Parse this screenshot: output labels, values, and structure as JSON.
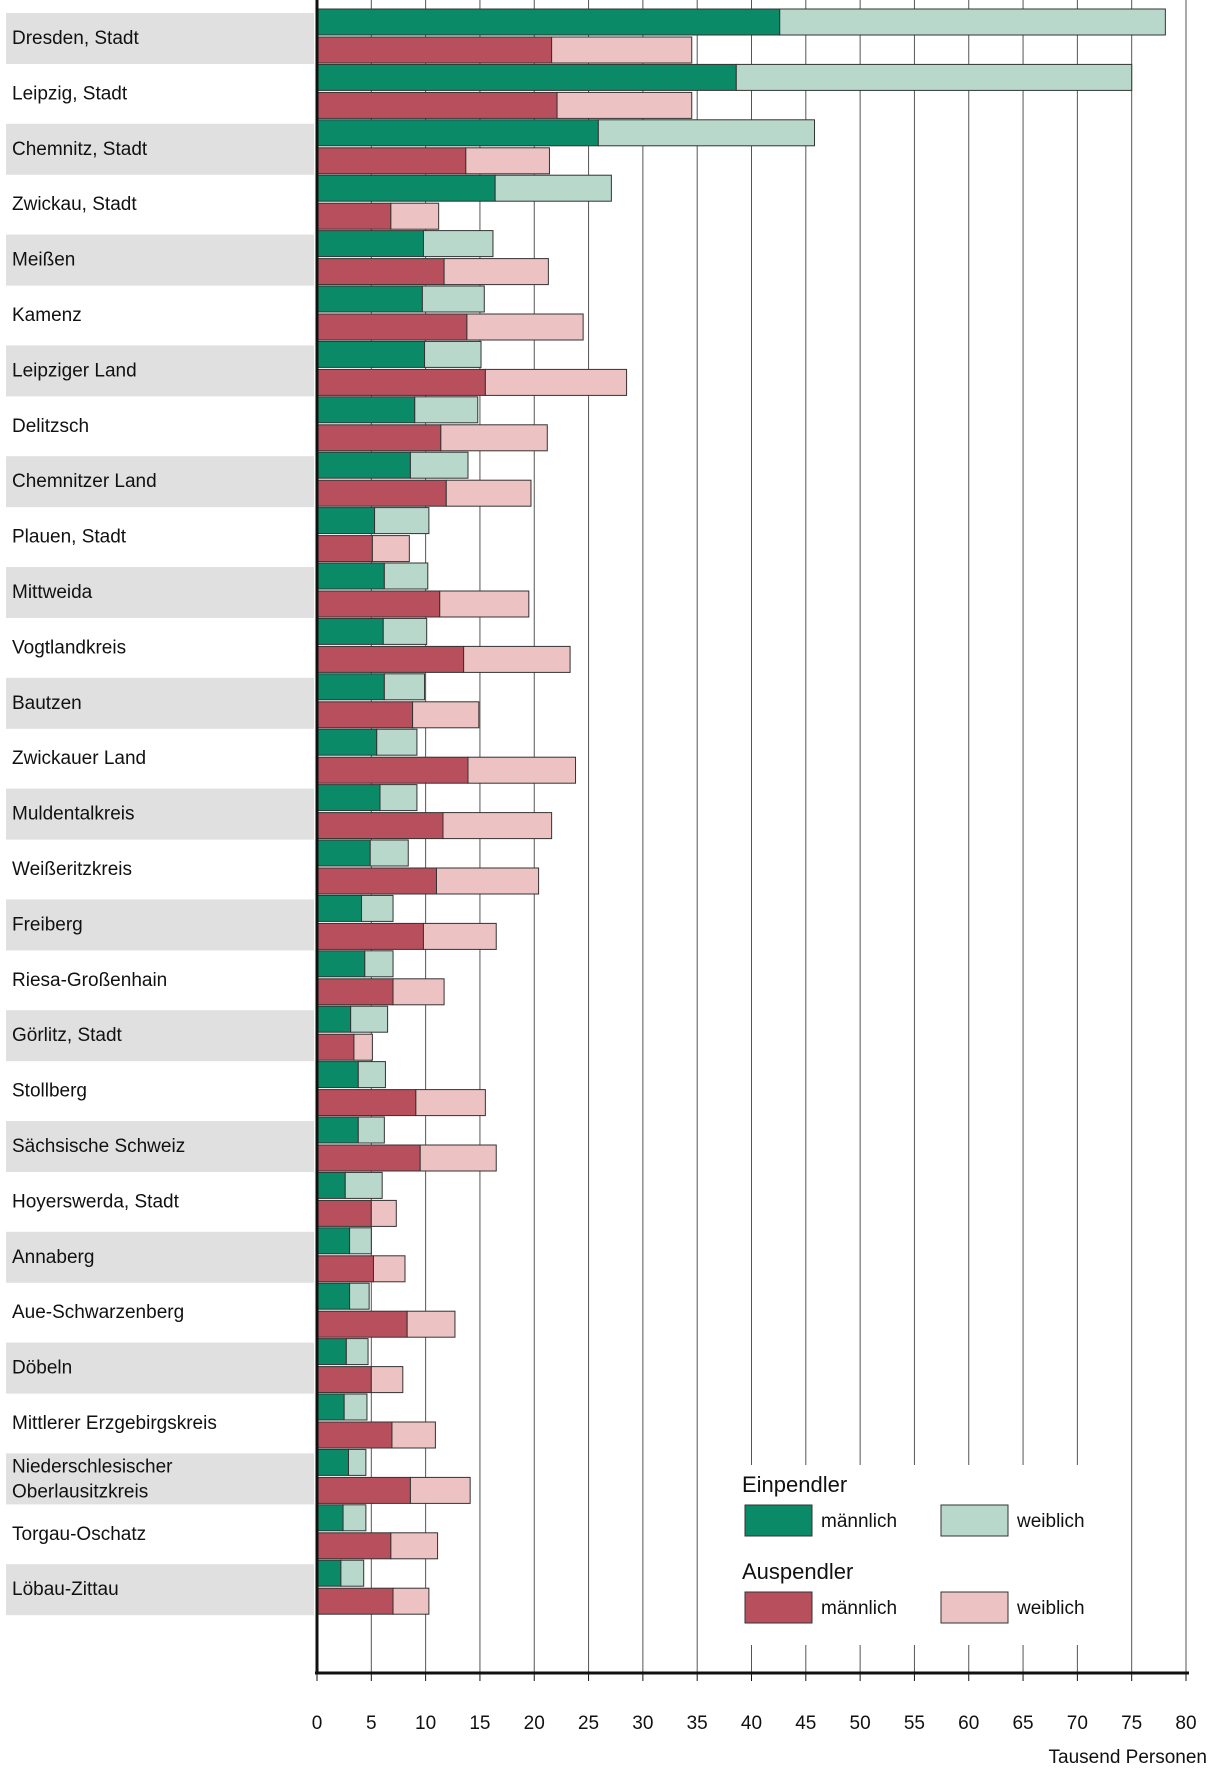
{
  "chart_data": {
    "type": "bar",
    "orientation": "horizontal",
    "stacked": true,
    "categories": [
      "Dresden, Stadt",
      "Leipzig, Stadt",
      "Chemnitz, Stadt",
      "Zwickau, Stadt",
      "Meißen",
      "Kamenz",
      "Leipziger Land",
      "Delitzsch",
      "Chemnitzer Land",
      "Plauen, Stadt",
      "Mittweida",
      "Vogtlandkreis",
      "Bautzen",
      "Zwickauer Land",
      "Muldentalkreis",
      "Weißeritzkreis",
      "Freiberg",
      "Riesa-Großenhain",
      "Görlitz, Stadt",
      "Stollberg",
      "Sächsische Schweiz",
      "Hoyerswerda, Stadt",
      "Annaberg",
      "Aue-Schwarzenberg",
      "Döbeln",
      "Mittlerer Erzgebirgskreis",
      "Niederschlesischer\nOberlausitzkreis",
      "Torgau-Oschatz",
      "Löbau-Zittau"
    ],
    "groups": [
      {
        "name": "Einpendler",
        "series": [
          {
            "name": "männlich",
            "color": "#0b8a67",
            "values": [
              42.6,
              38.6,
              25.9,
              16.4,
              9.8,
              9.7,
              9.9,
              9.0,
              8.6,
              5.3,
              6.2,
              6.1,
              6.2,
              5.5,
              5.8,
              4.9,
              4.1,
              4.4,
              3.1,
              3.8,
              3.8,
              2.6,
              3.0,
              3.0,
              2.7,
              2.5,
              2.9,
              2.4,
              2.2
            ]
          },
          {
            "name": "weiblich",
            "color": "#b8d8cb",
            "values": [
              35.5,
              36.4,
              19.9,
              10.7,
              6.4,
              5.7,
              5.2,
              5.8,
              5.3,
              5.0,
              4.0,
              4.0,
              3.7,
              3.7,
              3.4,
              3.5,
              2.9,
              2.6,
              3.4,
              2.5,
              2.4,
              3.4,
              2.0,
              1.8,
              2.0,
              2.1,
              1.6,
              2.1,
              2.1
            ]
          }
        ]
      },
      {
        "name": "Auspendler",
        "series": [
          {
            "name": "männlich",
            "color": "#b84f5d",
            "values": [
              21.6,
              22.1,
              13.7,
              6.8,
              11.7,
              13.8,
              15.5,
              11.4,
              11.9,
              5.1,
              11.3,
              13.5,
              8.8,
              13.9,
              11.6,
              11.0,
              9.8,
              7.0,
              3.4,
              9.1,
              9.5,
              5.0,
              5.2,
              8.3,
              5.0,
              6.9,
              8.6,
              6.8,
              7.0
            ]
          },
          {
            "name": "weiblich",
            "color": "#ecc3c2",
            "values": [
              12.9,
              12.4,
              7.7,
              4.4,
              9.6,
              10.7,
              13.0,
              9.8,
              7.8,
              3.4,
              8.2,
              9.8,
              6.1,
              9.9,
              10.0,
              9.4,
              6.7,
              4.7,
              1.7,
              6.4,
              7.0,
              2.3,
              2.9,
              4.4,
              2.9,
              4.0,
              5.5,
              4.3,
              3.3
            ]
          }
        ]
      }
    ],
    "xlim": [
      0,
      80
    ],
    "xticks": [
      0,
      5,
      10,
      15,
      20,
      25,
      30,
      35,
      40,
      45,
      50,
      55,
      60,
      65,
      70,
      75,
      80
    ],
    "xlabel": "Tausend Personen",
    "grid": true
  }
}
